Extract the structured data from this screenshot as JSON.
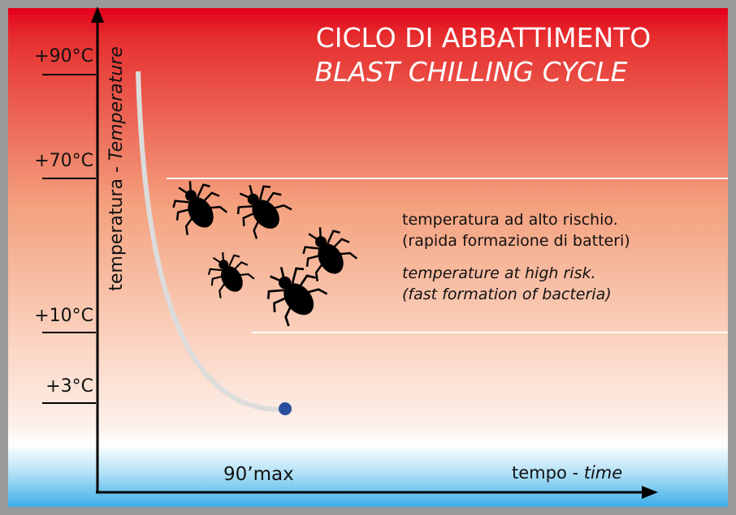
{
  "title": "CICLO DI ABBATTIMENTO",
  "subtitle": "BLAST CHILLING CYCLE",
  "y_axis": {
    "label": "temperatura - ",
    "label_italic": "Temperature",
    "levels": [
      "+90°C",
      "+70°C",
      "+10°C",
      "+3°C"
    ]
  },
  "x_axis": {
    "label": "tempo - ",
    "label_italic": "time",
    "duration": "90’max"
  },
  "risk": {
    "it": [
      "temperatura ad alto rischio.",
      "(rapida formazione di batteri)"
    ],
    "en": [
      "temperature at high risk.",
      "(fast formation of bacteria)"
    ]
  }
}
